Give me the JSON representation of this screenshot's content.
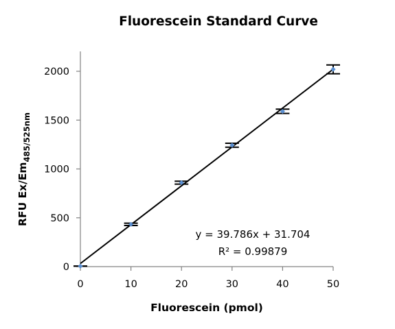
{
  "chart_data": {
    "type": "scatter",
    "title": "Fluorescein Standard Curve",
    "xlabel": "Fluorescein (pmol)",
    "ylabel_main": "RFU Ex/Em",
    "ylabel_sub": "485/525nm",
    "xlim": [
      0,
      50
    ],
    "ylim": [
      0,
      2000
    ],
    "x_ticks": [
      0,
      10,
      20,
      30,
      40,
      50
    ],
    "y_ticks": [
      0,
      500,
      1000,
      1500,
      2000
    ],
    "grid": false,
    "legend": "none",
    "marker_color": "#5b8fd1",
    "line_color": "#000000",
    "series": [
      {
        "x": [
          0,
          10,
          20,
          30,
          40,
          50
        ],
        "y": [
          5,
          433,
          860,
          1243,
          1590,
          2020
        ],
        "error": [
          0,
          12,
          15,
          20,
          22,
          45
        ]
      }
    ],
    "trendline": {
      "slope": 39.786,
      "intercept": 31.704,
      "equation": "y = 39.786x + 31.704",
      "r_squared": "R² = 0.99879"
    }
  }
}
